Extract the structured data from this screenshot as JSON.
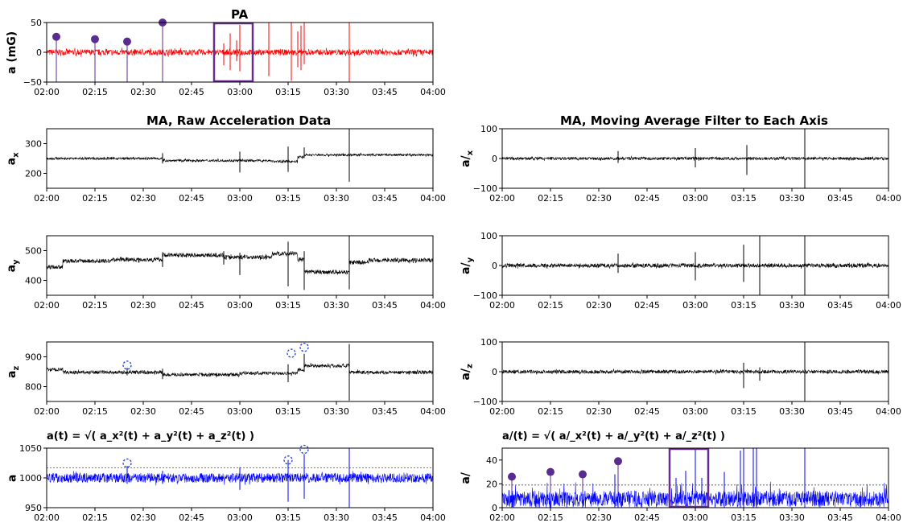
{
  "chart_data": [
    {
      "id": "pa",
      "type": "line",
      "title": "PA",
      "ylabel": "a (mG)",
      "ylabel_sub": "",
      "color": "#ff0000",
      "ylim": [
        -50,
        50
      ],
      "yticks": [
        -50,
        0,
        50
      ],
      "levels": [
        [
          "02:00",
          0
        ]
      ],
      "noise": 5,
      "abs": false,
      "spikes": [
        [
          "02:03",
          18,
          -25
        ],
        [
          "02:15",
          12,
          -18
        ],
        [
          "02:25",
          10,
          -22
        ],
        [
          "02:36",
          18,
          -20
        ],
        [
          "02:55",
          15,
          -22
        ],
        [
          "02:57",
          32,
          -30
        ],
        [
          "02:59",
          20,
          -15
        ],
        [
          "03:00",
          46,
          -32
        ],
        [
          "03:09",
          50,
          -40
        ],
        [
          "03:16",
          50,
          -48
        ],
        [
          "03:18",
          35,
          -25
        ],
        [
          "03:19",
          45,
          -30
        ],
        [
          "03:20",
          50,
          -20
        ],
        [
          "03:34",
          50,
          -50
        ]
      ],
      "markers": [
        [
          "02:03",
          26
        ],
        [
          "02:15",
          22
        ],
        [
          "02:25",
          18
        ],
        [
          "02:36",
          50
        ]
      ],
      "box": [
        "02:52",
        "03:04"
      ]
    },
    {
      "id": "ax",
      "type": "line",
      "title": "MA, Raw Acceleration Data",
      "ylabel": "a",
      "ylabel_sub": "x",
      "color": "#000000",
      "ylim": [
        150,
        350
      ],
      "yticks": [
        200,
        300
      ],
      "levels": [
        [
          "02:00",
          250
        ],
        [
          "02:36",
          243
        ],
        [
          "03:10",
          240
        ],
        [
          "03:18",
          255
        ],
        [
          "03:20",
          262
        ]
      ],
      "noise": 4,
      "abs": false,
      "spikes": [
        [
          "02:36",
          25,
          -10
        ],
        [
          "03:00",
          30,
          -40
        ],
        [
          "03:15",
          50,
          -35
        ],
        [
          "03:20",
          25,
          -10
        ],
        [
          "03:34",
          90,
          -90
        ]
      ]
    },
    {
      "id": "ay",
      "type": "line",
      "title": "",
      "ylabel": "a",
      "ylabel_sub": "y",
      "color": "#000000",
      "ylim": [
        350,
        550
      ],
      "yticks": [
        400,
        500
      ],
      "levels": [
        [
          "02:00",
          445
        ],
        [
          "02:05",
          465
        ],
        [
          "02:20",
          470
        ],
        [
          "02:36",
          485
        ],
        [
          "02:55",
          478
        ],
        [
          "03:10",
          490
        ],
        [
          "03:18",
          470
        ],
        [
          "03:20",
          428
        ],
        [
          "03:34",
          460
        ],
        [
          "03:40",
          468
        ]
      ],
      "noise": 7,
      "abs": false,
      "spikes": [
        [
          "02:36",
          10,
          -40
        ],
        [
          "02:55",
          20,
          -25
        ],
        [
          "03:00",
          15,
          -60
        ],
        [
          "03:15",
          40,
          -110
        ],
        [
          "03:20",
          70,
          -60
        ],
        [
          "03:34",
          90,
          -90
        ]
      ]
    },
    {
      "id": "az",
      "type": "line",
      "title": "",
      "ylabel": "a",
      "ylabel_sub": "z",
      "color": "#000000",
      "ylim": [
        750,
        950
      ],
      "yticks": [
        800,
        900
      ],
      "levels": [
        [
          "02:00",
          857
        ],
        [
          "02:05",
          848
        ],
        [
          "02:36",
          840
        ],
        [
          "03:00",
          845
        ],
        [
          "03:18",
          855
        ],
        [
          "03:20",
          870
        ],
        [
          "03:34",
          848
        ]
      ],
      "noise": 6,
      "abs": false,
      "spikes": [
        [
          "02:25",
          15,
          -10
        ],
        [
          "02:36",
          20,
          -15
        ],
        [
          "03:15",
          30,
          -30
        ],
        [
          "03:20",
          40,
          -20
        ],
        [
          "03:34",
          95,
          -95
        ]
      ],
      "circles": [
        [
          "02:25",
          872
        ],
        [
          "03:16",
          912
        ],
        [
          "03:20",
          932
        ]
      ]
    },
    {
      "id": "a",
      "type": "line",
      "title": "a(t) = √( a_x²(t) + a_y²(t) + a_z²(t) )",
      "ylabel": "a",
      "ylabel_sub": "",
      "color": "#0000ff",
      "ylim": [
        950,
        1050
      ],
      "yticks": [
        950,
        1000,
        1050
      ],
      "levels": [
        [
          "02:00",
          1000
        ]
      ],
      "noise": 8,
      "abs": false,
      "threshold": 1017,
      "spikes": [
        [
          "02:25",
          20,
          -10
        ],
        [
          "02:36",
          12,
          -10
        ],
        [
          "03:00",
          18,
          -20
        ],
        [
          "03:15",
          30,
          -40
        ],
        [
          "03:20",
          40,
          -35
        ],
        [
          "03:34",
          50,
          -50
        ]
      ],
      "circles": [
        [
          "02:25",
          1025
        ],
        [
          "03:15",
          1030
        ],
        [
          "03:20",
          1048
        ]
      ]
    },
    {
      "id": "mx",
      "type": "line",
      "title": "MA, Moving Average Filter to Each Axis",
      "ylabel": "a/",
      "ylabel_sub": "x",
      "color": "#000000",
      "ylim": [
        -100,
        100
      ],
      "yticks": [
        -100,
        0,
        100
      ],
      "levels": [
        [
          "02:00",
          0
        ]
      ],
      "noise": 5,
      "abs": false,
      "spikes": [
        [
          "02:36",
          25,
          -15
        ],
        [
          "03:00",
          35,
          -30
        ],
        [
          "03:16",
          45,
          -55
        ],
        [
          "03:34",
          100,
          -100
        ]
      ]
    },
    {
      "id": "my",
      "type": "line",
      "title": "",
      "ylabel": "a/",
      "ylabel_sub": "y",
      "color": "#000000",
      "ylim": [
        -100,
        100
      ],
      "yticks": [
        -100,
        0,
        100
      ],
      "levels": [
        [
          "02:00",
          0
        ]
      ],
      "noise": 7,
      "abs": false,
      "spikes": [
        [
          "02:36",
          40,
          -25
        ],
        [
          "03:00",
          45,
          -50
        ],
        [
          "03:15",
          70,
          -55
        ],
        [
          "03:20",
          100,
          -100
        ],
        [
          "03:34",
          100,
          -100
        ]
      ]
    },
    {
      "id": "mz",
      "type": "line",
      "title": "",
      "ylabel": "a/",
      "ylabel_sub": "z",
      "color": "#000000",
      "ylim": [
        -100,
        100
      ],
      "yticks": [
        -100,
        0,
        100
      ],
      "levels": [
        [
          "02:00",
          0
        ]
      ],
      "noise": 6,
      "abs": false,
      "spikes": [
        [
          "03:15",
          30,
          -55
        ],
        [
          "03:20",
          15,
          -30
        ],
        [
          "03:34",
          100,
          -100
        ]
      ]
    },
    {
      "id": "m",
      "type": "line",
      "title": "a/(t) = √( a/_x²(t) + a/_y²(t) + a/_z²(t) )",
      "ylabel": "a/",
      "ylabel_sub": "",
      "color": "#0000ff",
      "ylim": [
        0,
        50
      ],
      "yticks": [
        0,
        20,
        40
      ],
      "levels": [
        [
          "02:00",
          0
        ]
      ],
      "noise": 15,
      "abs": true,
      "threshold": 19,
      "spikes": [
        [
          "02:03",
          22,
          0
        ],
        [
          "02:15",
          26,
          0
        ],
        [
          "02:25",
          24,
          0
        ],
        [
          "02:35",
          28,
          0
        ],
        [
          "02:36",
          36,
          0
        ],
        [
          "02:54",
          25,
          0
        ],
        [
          "02:57",
          31,
          0
        ],
        [
          "03:00",
          50,
          0
        ],
        [
          "03:02",
          25,
          0
        ],
        [
          "03:09",
          30,
          0
        ],
        [
          "03:14",
          48,
          0
        ],
        [
          "03:15",
          50,
          0
        ],
        [
          "03:18",
          50,
          0
        ],
        [
          "03:19",
          50,
          0
        ],
        [
          "03:34",
          50,
          0
        ]
      ],
      "markers": [
        [
          "02:03",
          26
        ],
        [
          "02:15",
          30
        ],
        [
          "02:25",
          28
        ],
        [
          "02:36",
          39
        ]
      ],
      "box": [
        "02:52",
        "03:04"
      ]
    }
  ],
  "xticks": [
    "02:00",
    "02:15",
    "02:30",
    "02:45",
    "03:00",
    "03:15",
    "03:30",
    "03:45",
    "04:00"
  ],
  "colors": {
    "marker": "#5b2c8f",
    "box": "#6a2c91",
    "circle": "#1f3fd8"
  }
}
